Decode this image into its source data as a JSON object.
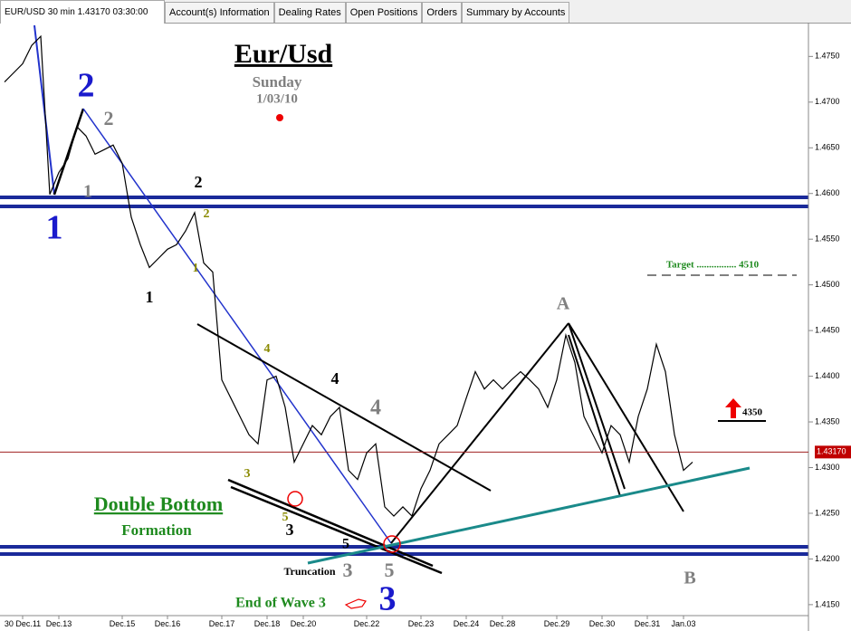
{
  "window": {
    "title": "EUR/USD 30 min 1.43170 03:30:00",
    "tabs": [
      "Account(s) Information",
      "Dealing Rates",
      "Open Positions",
      "Orders",
      "Summary by Accounts"
    ]
  },
  "chart_data": {
    "type": "line",
    "categories": [
      null,
      null,
      "30 Dec.11",
      null,
      null,
      null,
      "Dec.13",
      null,
      null,
      null,
      null,
      null,
      null,
      "Dec.15",
      null,
      null,
      null,
      null,
      "Dec.16",
      null,
      null,
      null,
      null,
      null,
      "Dec.17",
      null,
      null,
      null,
      null,
      "Dec.18",
      null,
      null,
      null,
      "Dec.20",
      null,
      null,
      null,
      null,
      null,
      null,
      "Dec.22",
      null,
      null,
      null,
      null,
      null,
      "Dec.23",
      null,
      null,
      null,
      null,
      "Dec.24",
      null,
      null,
      null,
      "Dec.28",
      null,
      null,
      null,
      null,
      null,
      "Dec.29",
      null,
      null,
      null,
      null,
      "Dec.30",
      null,
      null,
      null,
      null,
      "Dec.31",
      null,
      null,
      null,
      "Jan.03",
      null,
      null,
      null,
      null,
      null,
      null,
      null,
      null,
      null,
      null,
      null,
      null,
      null
    ],
    "series": [
      {
        "name": "EUR/USD",
        "color": "#000000",
        "values": [
          1.4722,
          1.4732,
          1.4742,
          1.4762,
          1.4772,
          1.4599,
          1.4623,
          1.4638,
          1.4673,
          1.4663,
          1.4643,
          1.4648,
          1.4653,
          1.4633,
          1.4574,
          1.4544,
          1.4519,
          1.4529,
          1.4539,
          1.4544,
          1.4559,
          1.4579,
          1.4524,
          1.4514,
          1.4396,
          1.4376,
          1.4356,
          1.4336,
          1.4326,
          1.4396,
          1.44,
          1.4366,
          1.4306,
          1.4326,
          1.4346,
          1.4336,
          1.4356,
          1.4366,
          1.4297,
          1.4287,
          1.4316,
          1.4326,
          1.4257,
          1.4247,
          1.4257,
          1.4247,
          1.4277,
          1.4297,
          1.4326,
          1.4336,
          1.4346,
          1.4376,
          1.4405,
          1.4386,
          1.4396,
          1.4386,
          1.4396,
          1.4405,
          1.4396,
          1.4386,
          1.4366,
          1.4396,
          1.4445,
          1.4415,
          1.4356,
          1.4336,
          1.4316,
          1.4346,
          1.4336,
          1.4306,
          1.4356,
          1.4386,
          1.4435,
          1.4405,
          1.4336,
          1.4297,
          1.4306,
          null,
          null,
          null,
          null,
          null,
          null,
          null,
          null,
          null,
          null,
          null,
          null
        ]
      }
    ],
    "ylim": [
      1.4138,
      1.4787
    ],
    "yticks": [
      {
        "value": 1.475,
        "label": "1.4750"
      },
      {
        "value": 1.47,
        "label": "1.4700"
      },
      {
        "value": 1.465,
        "label": "1.4650"
      },
      {
        "value": 1.46,
        "label": "1.4600"
      },
      {
        "value": 1.455,
        "label": "1.4550"
      },
      {
        "value": 1.45,
        "label": "1.4500"
      },
      {
        "value": 1.445,
        "label": "1.4450"
      },
      {
        "value": 1.44,
        "label": "1.4400"
      },
      {
        "value": 1.435,
        "label": "1.4350"
      },
      {
        "value": 1.43,
        "label": "1.4300"
      },
      {
        "value": 1.425,
        "label": "1.4250"
      },
      {
        "value": 1.42,
        "label": "1.4200"
      },
      {
        "value": 1.415,
        "label": "1.4150"
      }
    ],
    "last_price": {
      "value": 1.4317,
      "label": "1.43170"
    },
    "annotations": [
      {
        "text": "Eur/Usd",
        "color": "#000000"
      },
      {
        "text": "Sunday",
        "color": "#808080"
      },
      {
        "text": "1/03/10",
        "color": "#808080"
      },
      {
        "text": "2",
        "color": "#1a1acc"
      },
      {
        "text": "2",
        "color": "#808080"
      },
      {
        "text": "1",
        "color": "#808080"
      },
      {
        "text": "1",
        "color": "#1a1acc"
      },
      {
        "text": "2",
        "color": "#000000"
      },
      {
        "text": "2",
        "color": "#8a8a00"
      },
      {
        "text": "1",
        "color": "#8a8a00"
      },
      {
        "text": "1",
        "color": "#000000"
      },
      {
        "text": "4",
        "color": "#8a8a00"
      },
      {
        "text": "4",
        "color": "#000000"
      },
      {
        "text": "4",
        "color": "#808080"
      },
      {
        "text": "A",
        "color": "#808080"
      },
      {
        "text": "3",
        "color": "#8a8a00"
      },
      {
        "text": "5",
        "color": "#8a8a00"
      },
      {
        "text": "3",
        "color": "#000000"
      },
      {
        "text": "5",
        "color": "#000000"
      },
      {
        "text": "Truncation",
        "color": "#000000"
      },
      {
        "text": "3",
        "color": "#808080"
      },
      {
        "text": "5",
        "color": "#808080"
      },
      {
        "text": "3",
        "color": "#1a1acc"
      },
      {
        "text": "End of  Wave 3",
        "color": "#1e8a1e"
      },
      {
        "text": "Double Bottom",
        "color": "#1e8a1e"
      },
      {
        "text": "Formation",
        "color": "#1e8a1e"
      },
      {
        "text": "B",
        "color": "#808080"
      },
      {
        "text": "Target ................ 4510",
        "color": "#1e8a1e"
      },
      {
        "text": "4350",
        "color": "#000000"
      }
    ]
  }
}
